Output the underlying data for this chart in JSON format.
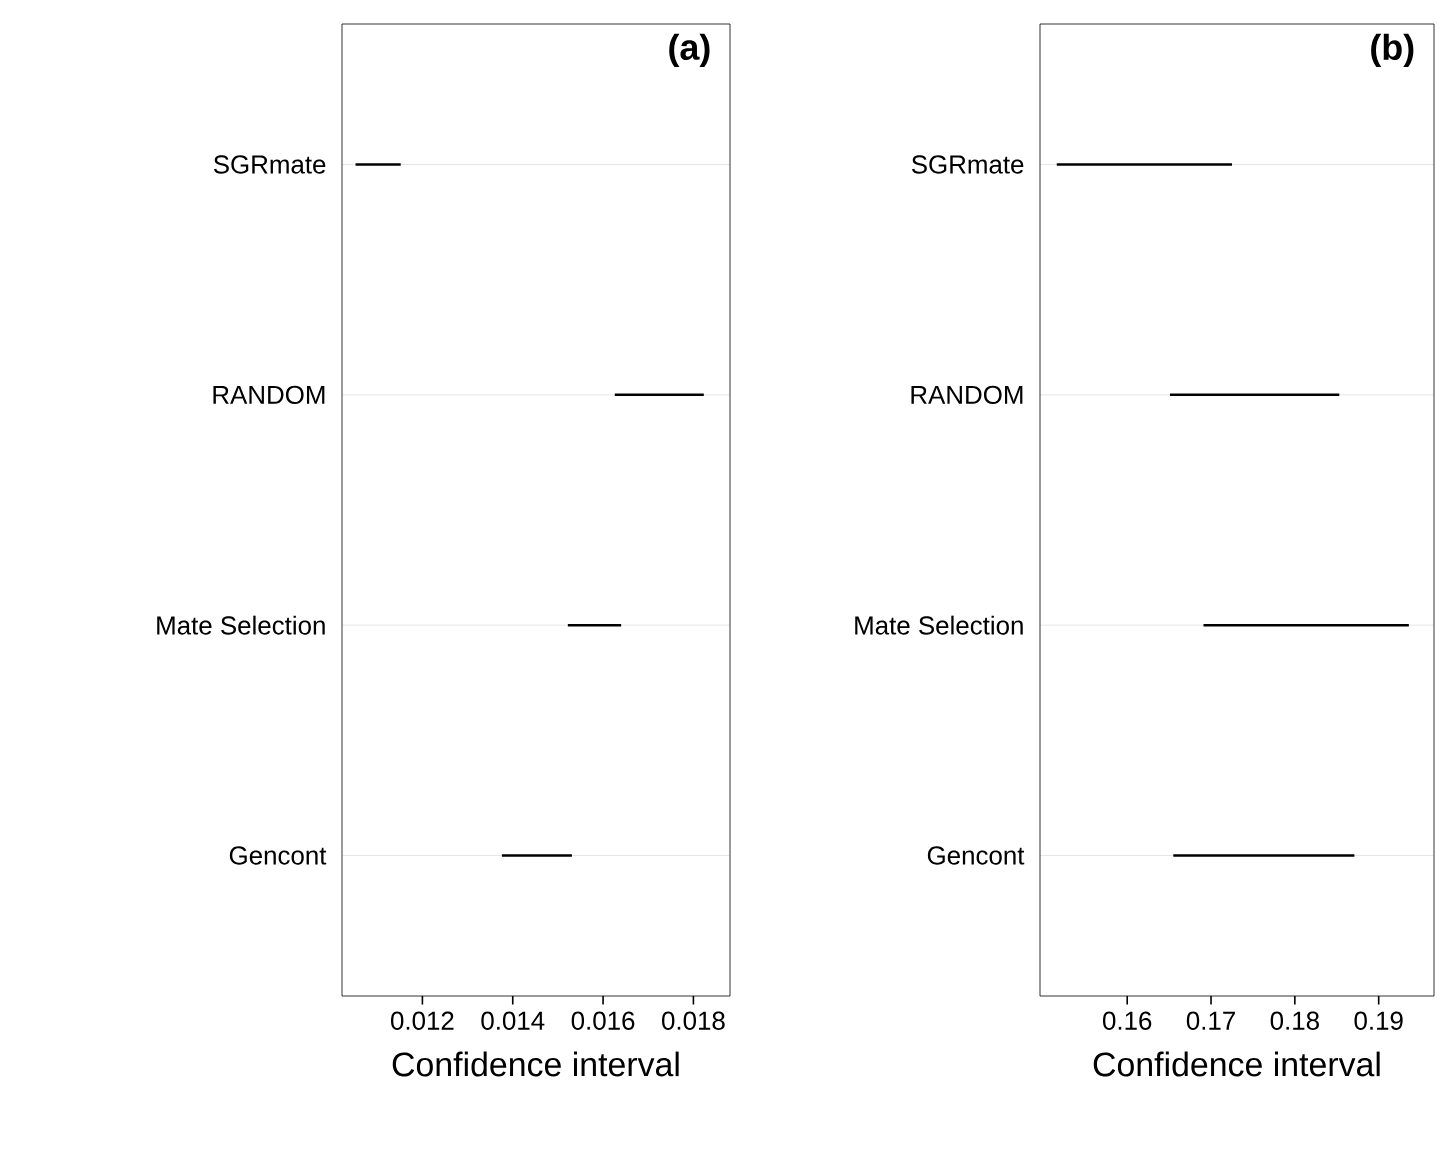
{
  "chart_data": [
    {
      "type": "bar",
      "orientation": "horizontal",
      "title": "(a)",
      "xlabel": "Confidence interval",
      "categories": [
        "SGRmate",
        "RANDOM",
        "Mate Selection",
        "Gencont"
      ],
      "base": [
        0.01052,
        0.01626,
        0.01522,
        0.01376
      ],
      "values": [
        0.001,
        0.00197,
        0.00118,
        0.00155
      ],
      "color": "#000000",
      "xlim": [
        0.01022,
        0.01881
      ],
      "xticks": [
        0.012,
        0.014,
        0.016,
        0.018
      ],
      "grid": "y"
    },
    {
      "type": "bar",
      "orientation": "horizontal",
      "title": "(b)",
      "xlabel": "Confidence interval",
      "categories": [
        "SGRmate",
        "RANDOM",
        "Mate Selection",
        "Gencont"
      ],
      "base": [
        0.1516,
        0.1651,
        0.1691,
        0.1655
      ],
      "values": [
        0.0209,
        0.0202,
        0.0245,
        0.0216
      ],
      "color": "#000000",
      "xlim": [
        0.1496,
        0.1966
      ],
      "xticks": [
        0.16,
        0.17,
        0.18,
        0.19
      ],
      "grid": "y"
    }
  ]
}
